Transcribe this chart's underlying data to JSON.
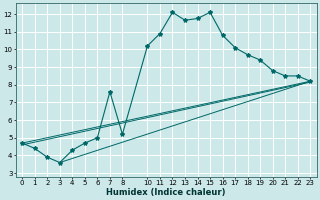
{
  "xlabel": "Humidex (Indice chaleur)",
  "bg_color": "#cce8e8",
  "grid_color": "#ffffff",
  "line_color": "#006868",
  "marker_color": "#006868",
  "xlim": [
    -0.5,
    23.5
  ],
  "ylim": [
    2.8,
    12.6
  ],
  "xticks": [
    0,
    1,
    2,
    3,
    4,
    5,
    6,
    7,
    8,
    10,
    11,
    12,
    13,
    14,
    15,
    16,
    17,
    18,
    19,
    20,
    21,
    22,
    23
  ],
  "yticks": [
    3,
    4,
    5,
    6,
    7,
    8,
    9,
    10,
    11,
    12
  ],
  "line1_x": [
    0,
    1,
    2,
    3,
    4,
    5,
    6,
    7,
    8,
    10,
    11,
    12,
    13,
    14,
    15,
    16,
    17,
    18,
    19,
    20,
    21,
    22,
    23
  ],
  "line1_y": [
    4.7,
    4.4,
    3.9,
    3.6,
    4.3,
    4.7,
    5.0,
    7.6,
    5.2,
    10.2,
    10.9,
    12.1,
    11.65,
    11.75,
    12.1,
    10.8,
    10.1,
    9.7,
    9.4,
    8.8,
    8.5,
    8.5,
    8.2
  ],
  "line2_x": [
    0,
    23
  ],
  "line2_y": [
    4.7,
    8.2
  ],
  "line3_x": [
    0,
    23
  ],
  "line3_y": [
    4.6,
    8.15
  ],
  "line4_x": [
    3,
    23
  ],
  "line4_y": [
    3.6,
    8.2
  ],
  "tick_fontsize": 5.0,
  "xlabel_fontsize": 6.0
}
